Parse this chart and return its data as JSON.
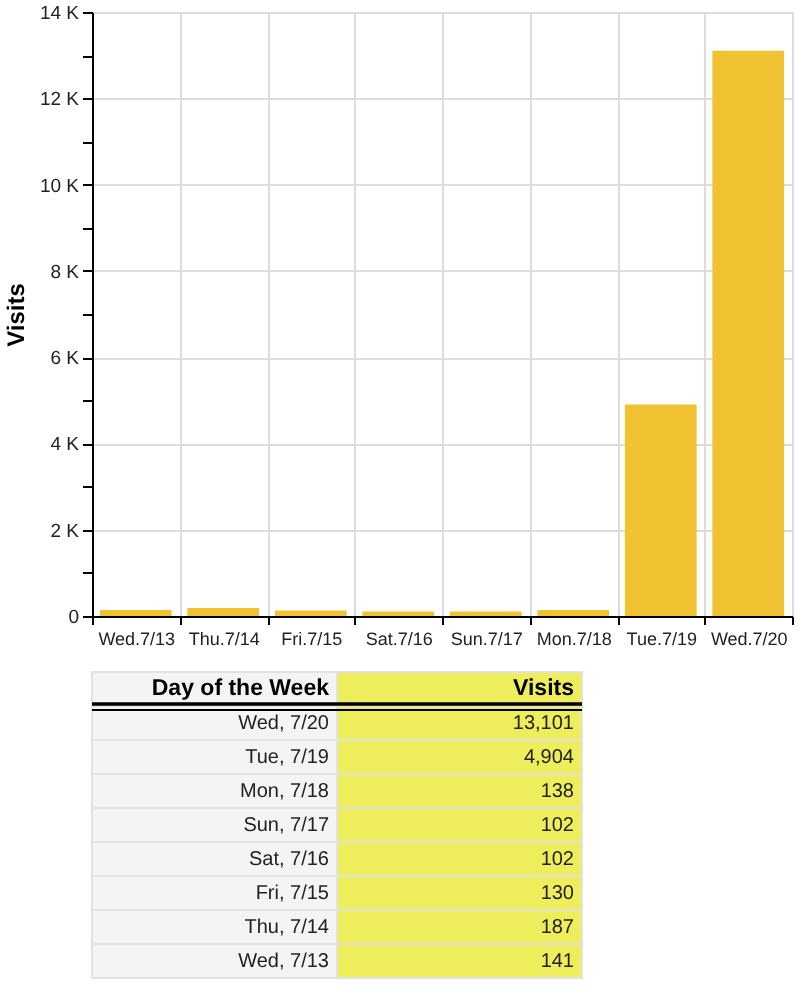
{
  "chart_data": {
    "type": "bar",
    "ylabel": "Visits",
    "categories": [
      "Wed.7/13",
      "Thu.7/14",
      "Fri.7/15",
      "Sat.7/16",
      "Sun.7/17",
      "Mon.7/18",
      "Tue.7/19",
      "Wed.7/20"
    ],
    "values": [
      141,
      187,
      130,
      102,
      102,
      138,
      4904,
      13101
    ],
    "color": "#f1c232",
    "ylim": [
      0,
      14000
    ],
    "yticks": [
      0,
      {
        "value": 1000,
        "label": null
      },
      {
        "value": 2000,
        "label": "2 K"
      },
      {
        "value": 3000,
        "label": null
      },
      {
        "value": 4000,
        "label": "4 K"
      },
      {
        "value": 5000,
        "label": null
      },
      {
        "value": 6000,
        "label": "6 K"
      },
      {
        "value": 7000,
        "label": null
      },
      {
        "value": 8000,
        "label": "8 K"
      },
      {
        "value": 9000,
        "label": null
      },
      {
        "value": 10000,
        "label": "10 K"
      },
      {
        "value": 11000,
        "label": null
      },
      {
        "value": 12000,
        "label": "12 K"
      },
      {
        "value": 13000,
        "label": null
      },
      {
        "value": 14000,
        "label": "14 K"
      }
    ],
    "grid": true,
    "annotations": [
      "Day of the Week",
      "Visits",
      "Wed, 7/20",
      "13,101",
      "Tue, 7/19",
      "4,904",
      "Mon, 7/18",
      "138",
      "Sun, 7/17",
      "102",
      "Sat, 7/16",
      "102",
      "Fri, 7/15",
      "130",
      "Thu, 7/14",
      "187",
      "Wed, 7/13",
      "141"
    ]
  }
}
